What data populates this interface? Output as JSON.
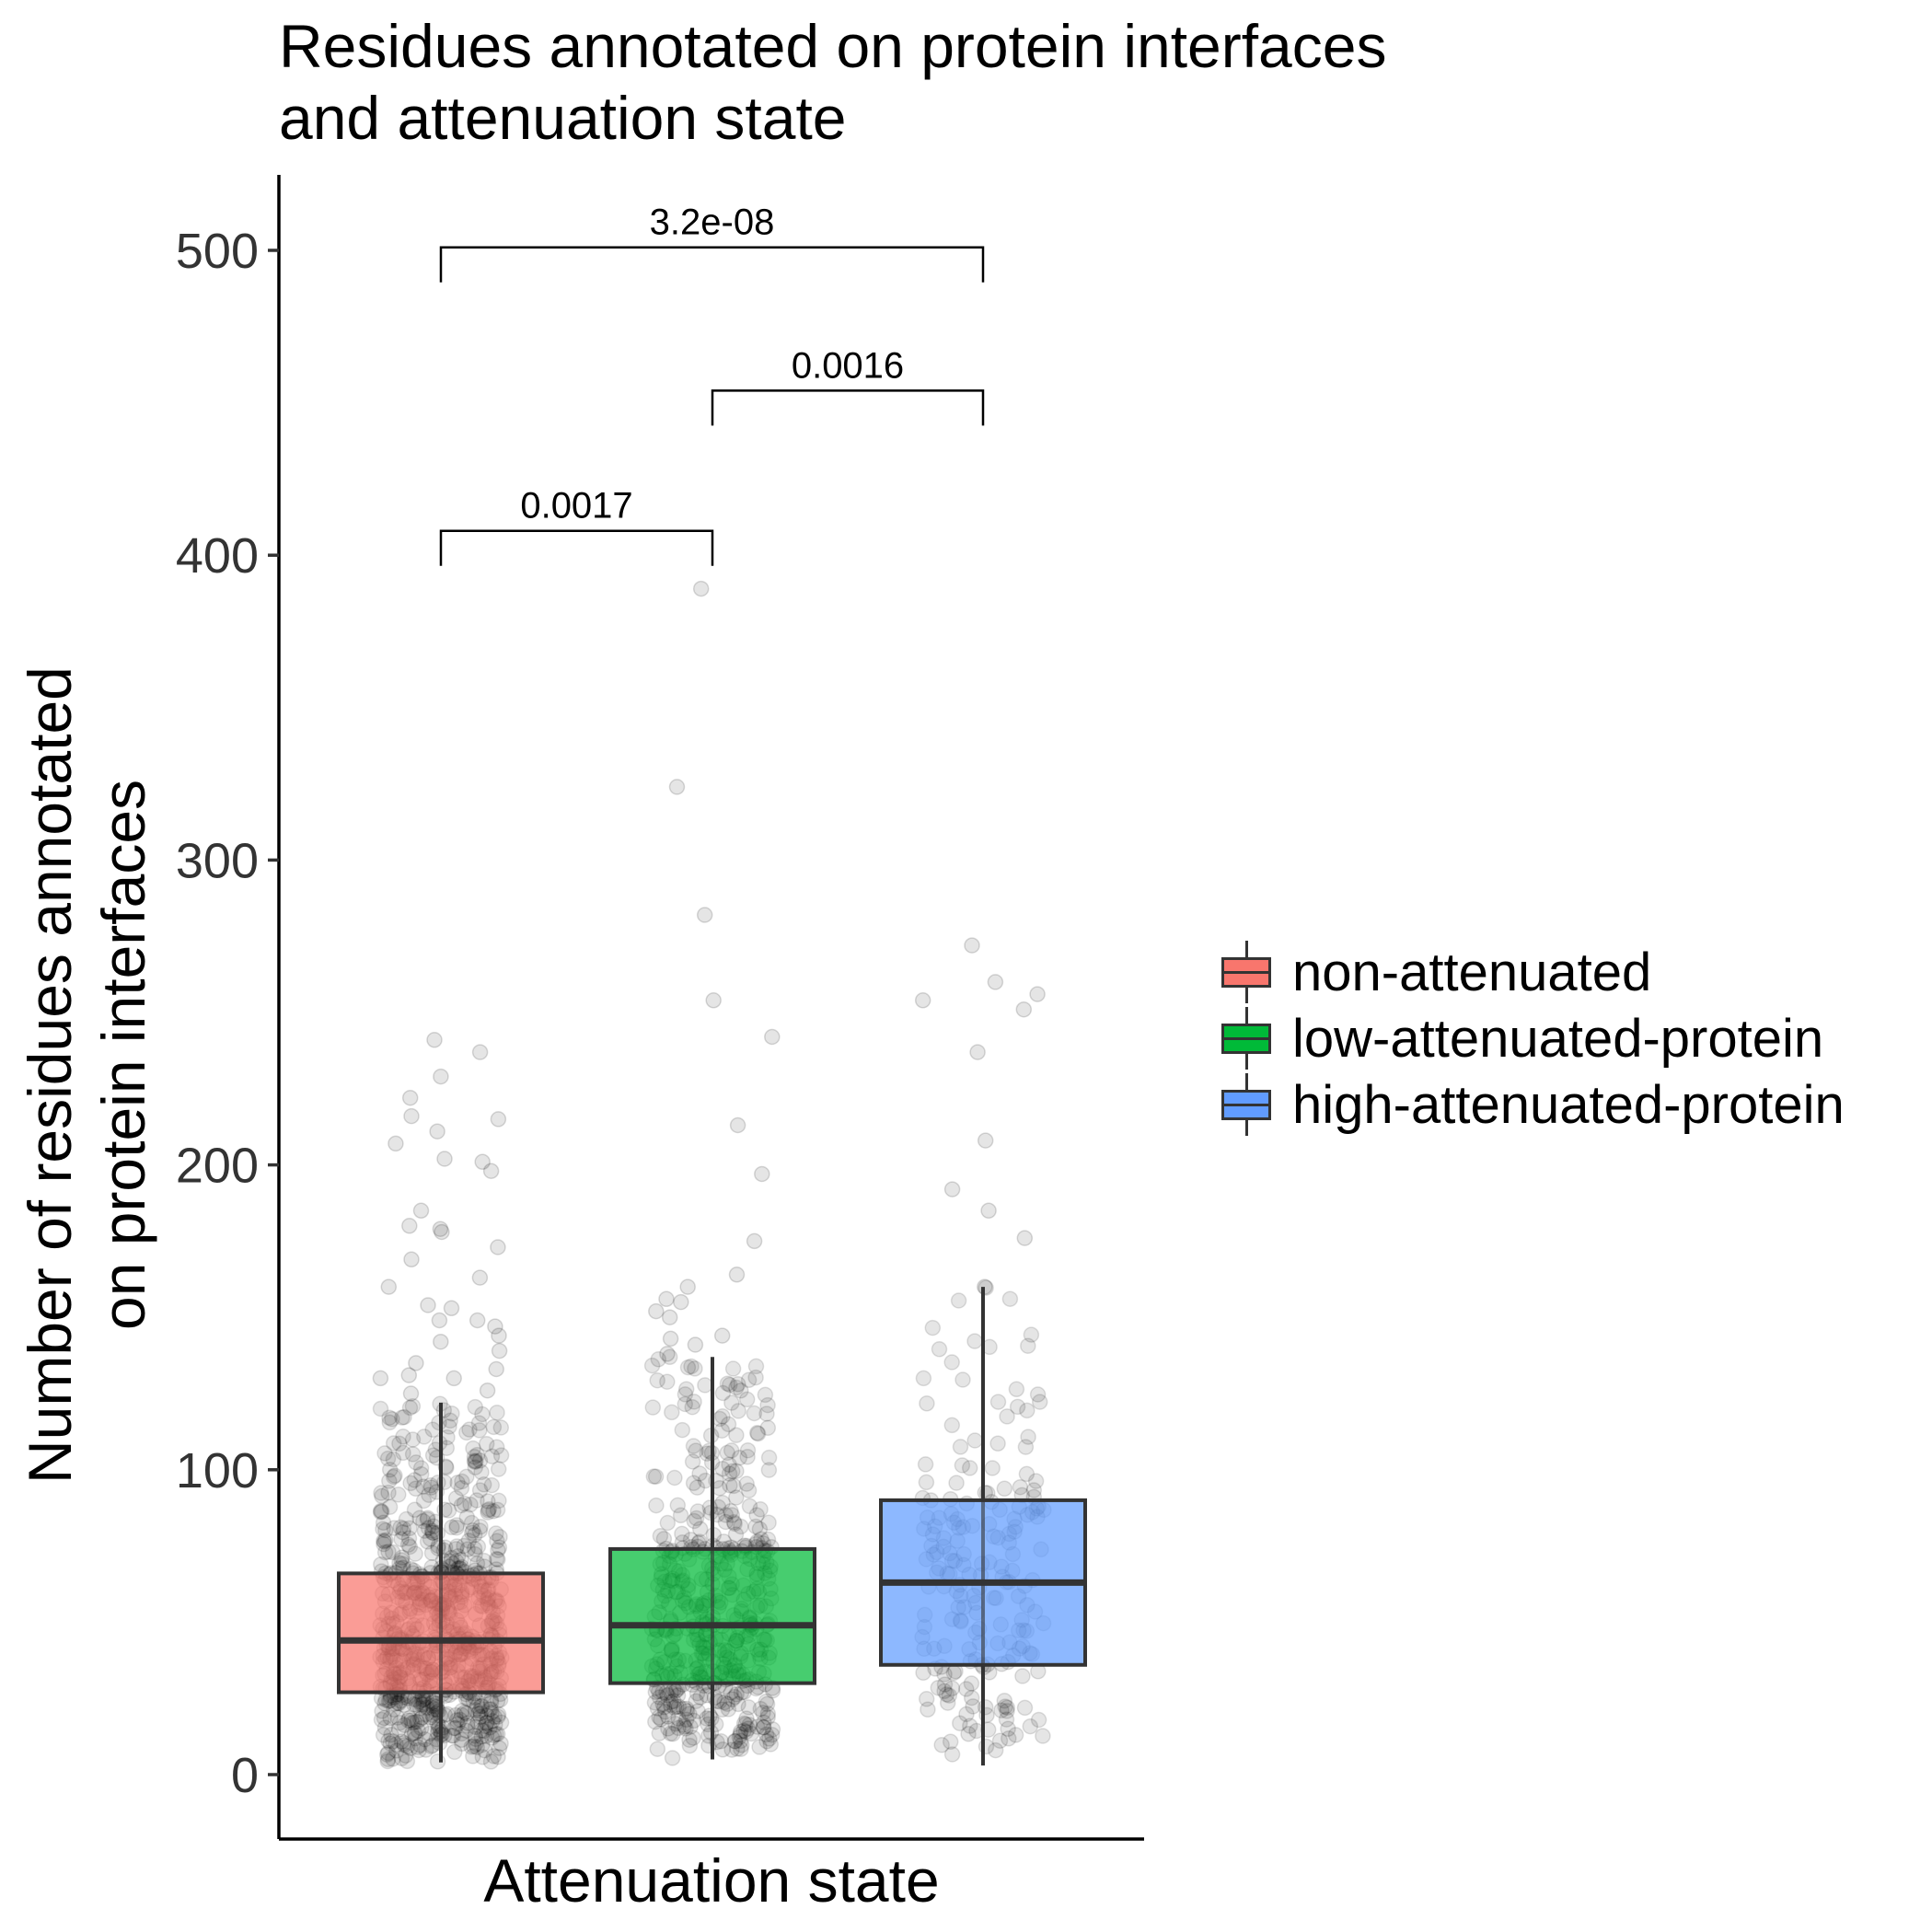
{
  "chart_data": {
    "type": "box",
    "title_lines": [
      "Residues annotated on protein interfaces",
      "and attenuation state"
    ],
    "xlabel": "Attenuation state",
    "ylabel_lines": [
      "Number of residues annotated",
      "on protein interfaces"
    ],
    "ylim": [
      -20,
      525
    ],
    "yticks": [
      0,
      100,
      200,
      300,
      400,
      500
    ],
    "grid": false,
    "legend_position": "right",
    "groups": [
      {
        "name": "non-attenuated",
        "color": "#F8766D",
        "q1": 27,
        "median": 44,
        "q3": 66,
        "whisker_low": 4,
        "whisker_high": 122,
        "n_points": 800,
        "outliers": [
          237,
          241,
          229,
          222,
          216,
          215,
          211,
          207,
          202,
          201,
          198,
          185,
          180,
          179,
          178,
          173,
          169,
          163,
          160,
          154,
          153,
          149,
          149,
          147,
          144,
          142,
          139,
          135,
          133,
          131,
          130,
          130,
          126,
          125
        ]
      },
      {
        "name": "low-attenuated-protein",
        "color": "#00BA38",
        "q1": 30,
        "median": 49,
        "q3": 74,
        "whisker_low": 5,
        "whisker_high": 137,
        "n_points": 500,
        "outliers": [
          389,
          324,
          282,
          254,
          242,
          213,
          197,
          175,
          164,
          160,
          156,
          155,
          152,
          150,
          144,
          143,
          141,
          138
        ]
      },
      {
        "name": "high-attenuated-protein",
        "color": "#619CFF",
        "q1": 36,
        "median": 63,
        "q3": 90,
        "whisker_low": 3,
        "whisker_high": 160,
        "n_points": 200,
        "outliers": [
          272,
          260,
          256,
          254,
          251,
          237,
          208,
          192,
          185,
          176,
          160
        ]
      }
    ],
    "comparisons": [
      {
        "from": 0,
        "to": 1,
        "label": "0.0017",
        "y": 408
      },
      {
        "from": 1,
        "to": 2,
        "label": "0.0016",
        "y": 454
      },
      {
        "from": 0,
        "to": 2,
        "label": "3.2e-08",
        "y": 501
      }
    ]
  }
}
